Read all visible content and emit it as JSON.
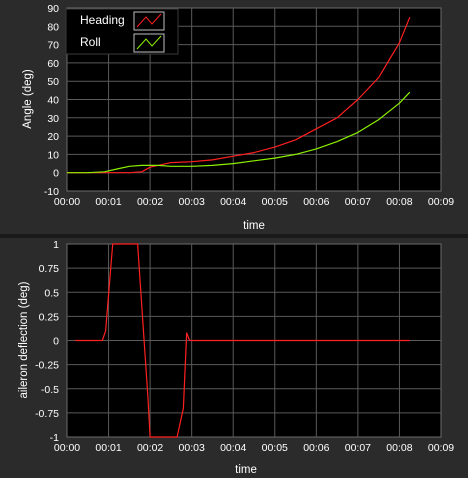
{
  "chart_data": [
    {
      "type": "line",
      "title": "",
      "xlabel": "time",
      "ylabel": "Angle (deg)",
      "xlim": [
        0,
        9
      ],
      "ylim": [
        -10,
        90
      ],
      "grid": true,
      "legend": "top-left",
      "x_ticks": [
        "00:00",
        "00:01",
        "00:02",
        "00:03",
        "00:04",
        "00:05",
        "00:06",
        "00:07",
        "00:08",
        "00:09"
      ],
      "y_ticks": [
        "-10",
        "0",
        "10",
        "20",
        "30",
        "40",
        "50",
        "60",
        "70",
        "80",
        "90"
      ],
      "series": [
        {
          "name": "Heading",
          "color": "#ff2020",
          "x": [
            0,
            0.5,
            0.9,
            1.5,
            1.8,
            2.0,
            2.5,
            3.0,
            3.5,
            4.0,
            4.5,
            5.0,
            5.5,
            6.0,
            6.5,
            7.0,
            7.5,
            8.0,
            8.25
          ],
          "y": [
            0,
            0,
            0,
            0,
            0.5,
            3,
            5.5,
            6,
            7,
            9,
            11,
            14,
            18,
            24,
            30,
            40,
            52,
            71,
            85
          ]
        },
        {
          "name": "Roll",
          "color": "#8cf000",
          "x": [
            0,
            0.5,
            0.9,
            1.2,
            1.5,
            1.8,
            2.2,
            2.5,
            3.0,
            3.5,
            4.0,
            4.5,
            5.0,
            5.5,
            6.0,
            6.5,
            7.0,
            7.5,
            8.0,
            8.25
          ],
          "y": [
            0,
            0,
            0.5,
            2,
            3.5,
            4,
            4,
            3.5,
            3.5,
            4,
            5,
            6.5,
            8,
            10,
            13,
            17,
            22,
            29,
            38,
            44
          ]
        }
      ]
    },
    {
      "type": "line",
      "title": "",
      "xlabel": "time",
      "ylabel": "aileron deflection (deg)",
      "xlim": [
        0,
        9
      ],
      "ylim": [
        -1,
        1
      ],
      "grid": true,
      "x_ticks": [
        "00:00",
        "00:01",
        "00:02",
        "00:03",
        "00:04",
        "00:05",
        "00:06",
        "00:07",
        "00:08",
        "00:09"
      ],
      "y_ticks": [
        "-1",
        "-0.75",
        "-0.5",
        "-0.25",
        "0",
        "0.25",
        "0.5",
        "0.75",
        "1"
      ],
      "series": [
        {
          "color": "#ff2020",
          "x": [
            0.2,
            0.85,
            0.93,
            1.1,
            1.7,
            1.95,
            2.0,
            2.65,
            2.8,
            2.88,
            2.95,
            8.25
          ],
          "y": [
            0,
            0,
            0.1,
            1,
            1,
            -0.6,
            -1,
            -1,
            -0.7,
            0.08,
            0,
            0
          ]
        }
      ]
    }
  ],
  "legend": {
    "items": [
      {
        "label": "Heading",
        "color": "#ff2020"
      },
      {
        "label": "Roll",
        "color": "#8cf000"
      }
    ]
  }
}
